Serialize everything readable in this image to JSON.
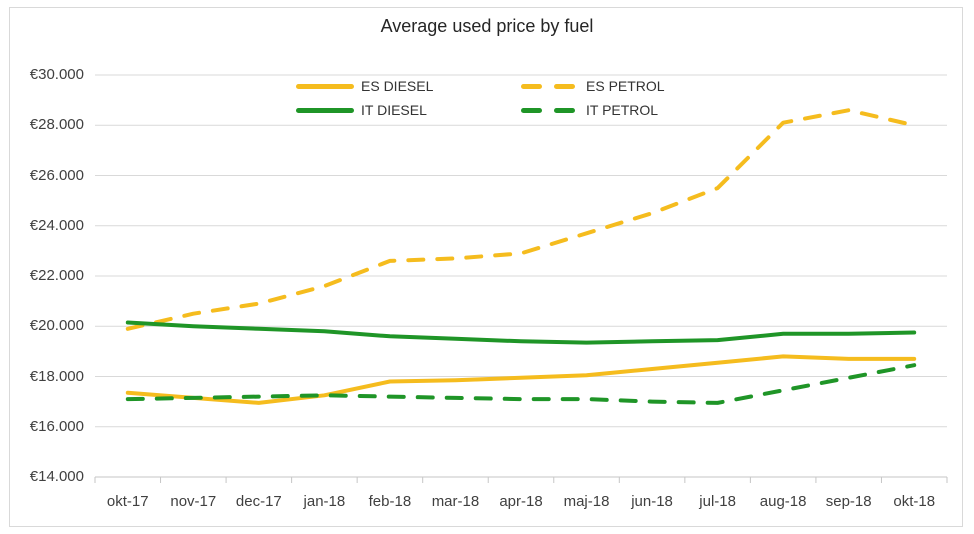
{
  "chart_data": {
    "type": "line",
    "title": "Average used price by fuel",
    "categories": [
      "okt-17",
      "nov-17",
      "dec-17",
      "jan-18",
      "feb-18",
      "mar-18",
      "apr-18",
      "maj-18",
      "jun-18",
      "jul-18",
      "aug-18",
      "sep-18",
      "okt-18"
    ],
    "series": [
      {
        "name": "ES DIESEL",
        "color": "#F5BC1E",
        "dash": false,
        "values": [
          17350,
          17150,
          16950,
          17250,
          17800,
          17850,
          17950,
          18050,
          18300,
          18550,
          18800,
          18700,
          18700
        ]
      },
      {
        "name": "ES PETROL",
        "color": "#F5BC1E",
        "dash": true,
        "values": [
          19900,
          20500,
          20900,
          21600,
          22600,
          22700,
          22900,
          23700,
          24500,
          25500,
          28100,
          28600,
          28000
        ]
      },
      {
        "name": "IT DIESEL",
        "color": "#1F9527",
        "dash": false,
        "values": [
          20150,
          20000,
          19900,
          19800,
          19600,
          19500,
          19400,
          19350,
          19400,
          19450,
          19700,
          19700,
          19750
        ]
      },
      {
        "name": "IT PETROL",
        "color": "#1F9527",
        "dash": true,
        "values": [
          17100,
          17150,
          17200,
          17250,
          17200,
          17150,
          17100,
          17100,
          17000,
          16950,
          17450,
          17950,
          18450
        ]
      }
    ],
    "xlabel": "",
    "ylabel": "",
    "ylim": [
      14000,
      30000
    ],
    "ytick_step": 2000,
    "y_tick_labels": [
      "€30.000",
      "€28.000",
      "€26.000",
      "€24.000",
      "€22.000",
      "€20.000",
      "€18.000",
      "€16.000",
      "€14.000"
    ],
    "grid": true,
    "legend_position": "top-inside",
    "colors": {
      "gridline": "#D9D9D9",
      "axis": "#C6C6C6",
      "text": "#404040",
      "title": "#262626"
    }
  }
}
